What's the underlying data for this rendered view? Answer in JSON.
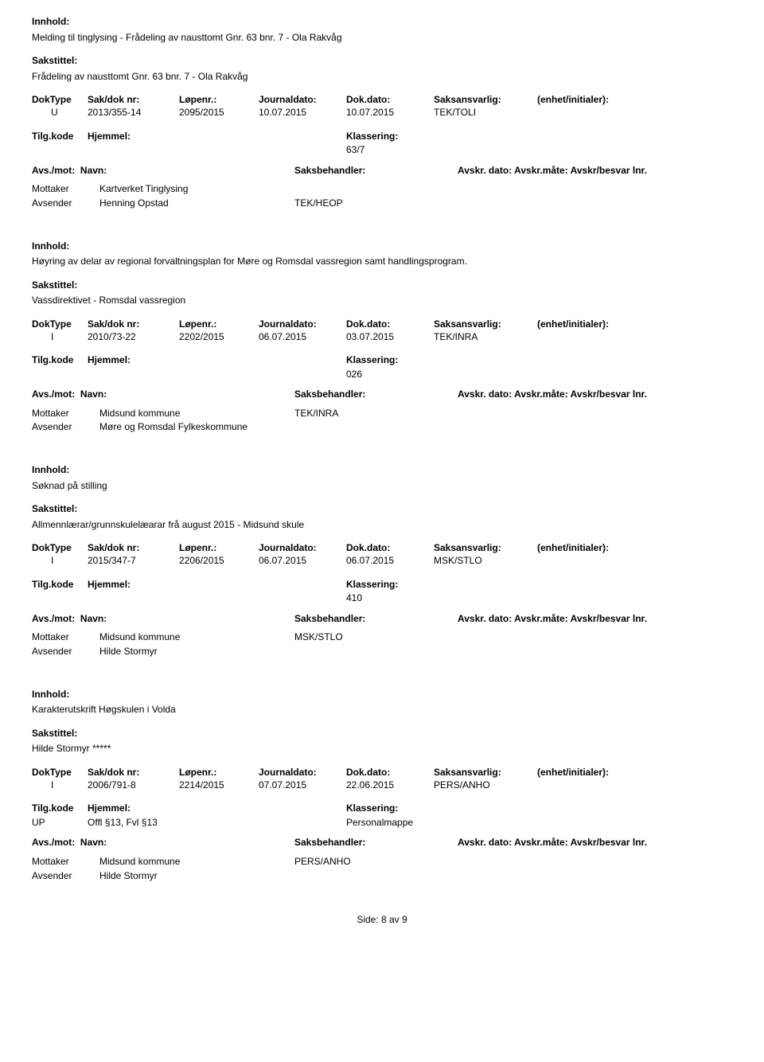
{
  "labels": {
    "innhold": "Innhold:",
    "sakstittel": "Sakstittel:",
    "doktype": "DokType",
    "sakdok": "Sak/dok nr:",
    "lopenr": "Løpenr.:",
    "journaldato": "Journaldato:",
    "dokdato": "Dok.dato:",
    "saksansvarlig": "Saksansvarlig:",
    "enhet": "(enhet/initialer):",
    "tilgkode": "Tilg.kode",
    "hjemmel": "Hjemmel:",
    "klassering": "Klassering:",
    "avsmot": "Avs./mot:",
    "navn": "Navn:",
    "saksbehandler": "Saksbehandler:",
    "avskr": "Avskr. dato: Avskr.måte: Avskr/besvar lnr.",
    "mottaker": "Mottaker",
    "avsender": "Avsender"
  },
  "records": [
    {
      "innhold": "Melding til tinglysing - Frådeling av nausttomt Gnr. 63 bnr. 7 - Ola Rakvåg",
      "sakstittel": "Frådeling av nausttomt Gnr. 63 bnr. 7 - Ola Rakvåg",
      "doktype": "U",
      "sakdok": "2013/355-14",
      "lopenr": "2095/2015",
      "jdato": "10.07.2015",
      "ddato": "10.07.2015",
      "saksansv": "TEK/TOLI",
      "tilgkode": "",
      "hjemmel": "",
      "klassering": "63/7",
      "parties": [
        {
          "role": "Mottaker",
          "name": "Kartverket Tinglysing",
          "handler": ""
        },
        {
          "role": "Avsender",
          "name": "Henning Opstad",
          "handler": "TEK/HEOP"
        }
      ]
    },
    {
      "innhold": "Høyring av delar av regional forvaltningsplan for Møre og Romsdal vassregion samt handlingsprogram.",
      "sakstittel": "Vassdirektivet  - Romsdal vassregion",
      "doktype": "I",
      "sakdok": "2010/73-22",
      "lopenr": "2202/2015",
      "jdato": "06.07.2015",
      "ddato": "03.07.2015",
      "saksansv": "TEK/INRA",
      "tilgkode": "",
      "hjemmel": "",
      "klassering": "026",
      "parties": [
        {
          "role": "Mottaker",
          "name": "Midsund kommune",
          "handler": "TEK/INRA"
        },
        {
          "role": "Avsender",
          "name": "Møre og Romsdal Fylkeskommune",
          "handler": ""
        }
      ]
    },
    {
      "innhold": "Søknad på stilling",
      "sakstittel": "Allmennlærar/grunnskulelæarar frå august 2015 - Midsund skule",
      "doktype": "I",
      "sakdok": "2015/347-7",
      "lopenr": "2206/2015",
      "jdato": "06.07.2015",
      "ddato": "06.07.2015",
      "saksansv": "MSK/STLO",
      "tilgkode": "",
      "hjemmel": "",
      "klassering": "410",
      "parties": [
        {
          "role": "Mottaker",
          "name": "Midsund kommune",
          "handler": "MSK/STLO"
        },
        {
          "role": "Avsender",
          "name": "Hilde Stormyr",
          "handler": ""
        }
      ]
    },
    {
      "innhold": "Karakterutskrift Høgskulen i Volda",
      "sakstittel": "Hilde Stormyr  *****",
      "doktype": "I",
      "sakdok": "2006/791-8",
      "lopenr": "2214/2015",
      "jdato": "07.07.2015",
      "ddato": "22.06.2015",
      "saksansv": "PERS/ANHO",
      "tilgkode": "UP",
      "hjemmel": "Offl §13, Fvl §13",
      "klassering": "Personalmappe",
      "parties": [
        {
          "role": "Mottaker",
          "name": "Midsund kommune",
          "handler": "PERS/ANHO"
        },
        {
          "role": "Avsender",
          "name": "Hilde Stormyr",
          "handler": ""
        }
      ]
    }
  ],
  "footer": "Side:  8  av  9"
}
